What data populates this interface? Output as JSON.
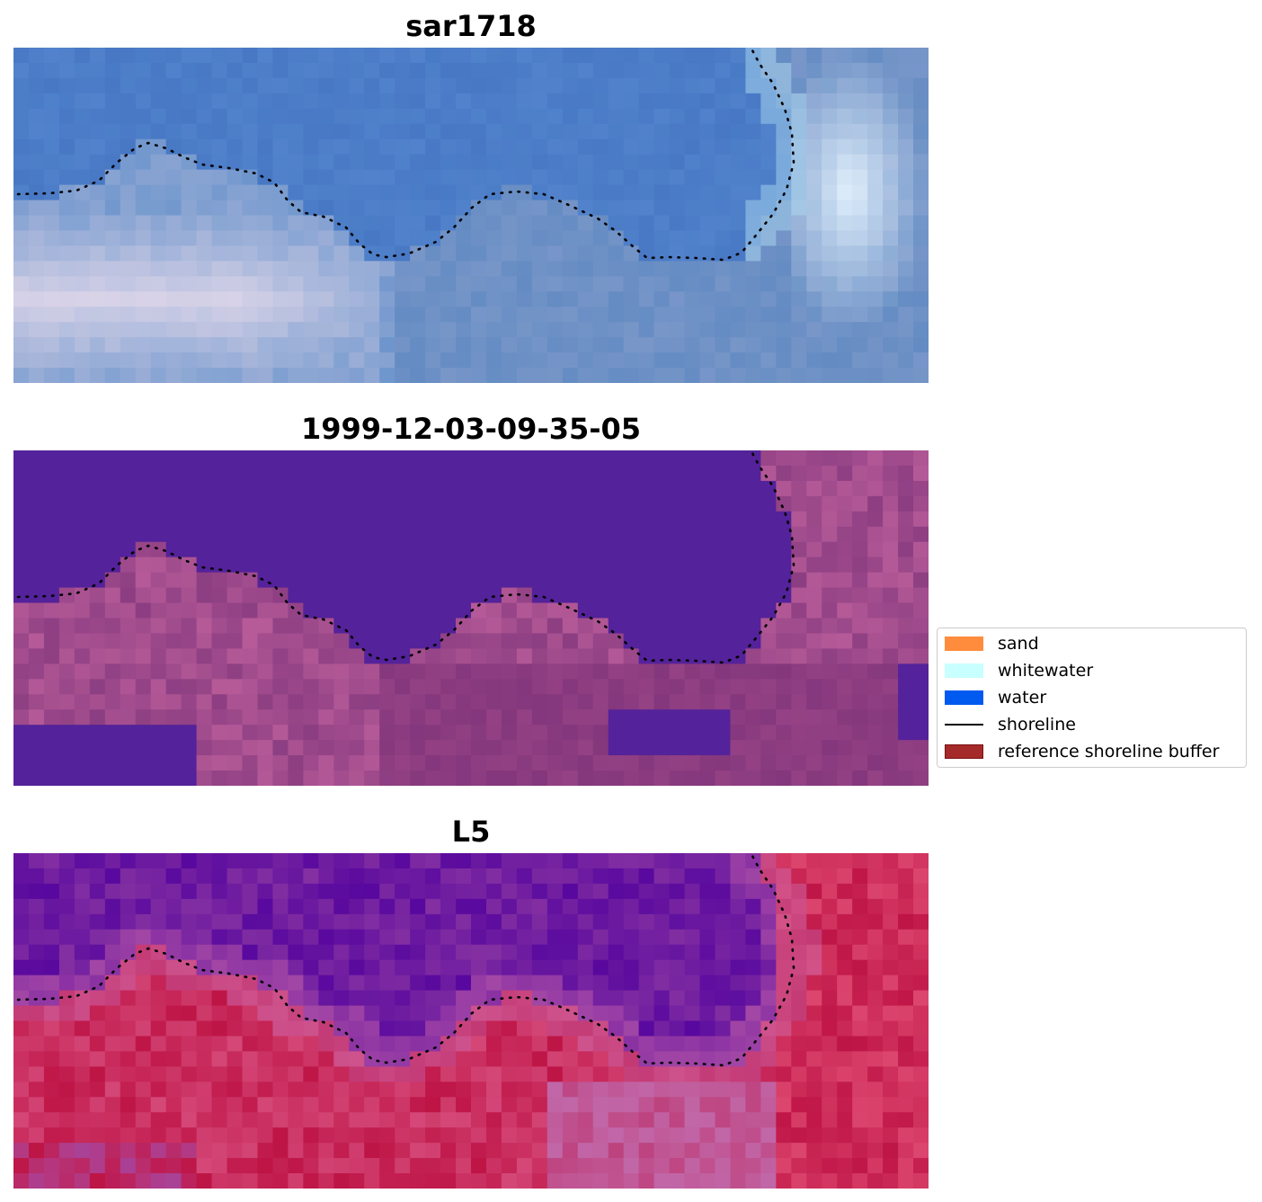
{
  "panels": [
    {
      "title": "sar1718",
      "scene": "rgb"
    },
    {
      "title": "1999-12-03-09-35-05",
      "scene": "classified"
    },
    {
      "title": "L5",
      "scene": "index"
    }
  ],
  "legend": {
    "items": [
      {
        "label": "sand",
        "kind": "patch",
        "color": "#ff8c3c"
      },
      {
        "label": "whitewater",
        "kind": "patch",
        "color": "#c8ffff"
      },
      {
        "label": "water",
        "kind": "patch",
        "color": "#005af0"
      },
      {
        "label": "shoreline",
        "kind": "line",
        "color": "#000000"
      },
      {
        "label": "reference shoreline buffer",
        "kind": "patch",
        "color": "#a52a2a"
      }
    ]
  },
  "colors": {
    "water_class": "#54229a",
    "land_class": "#8a3c84",
    "shoreline": "#000000"
  }
}
